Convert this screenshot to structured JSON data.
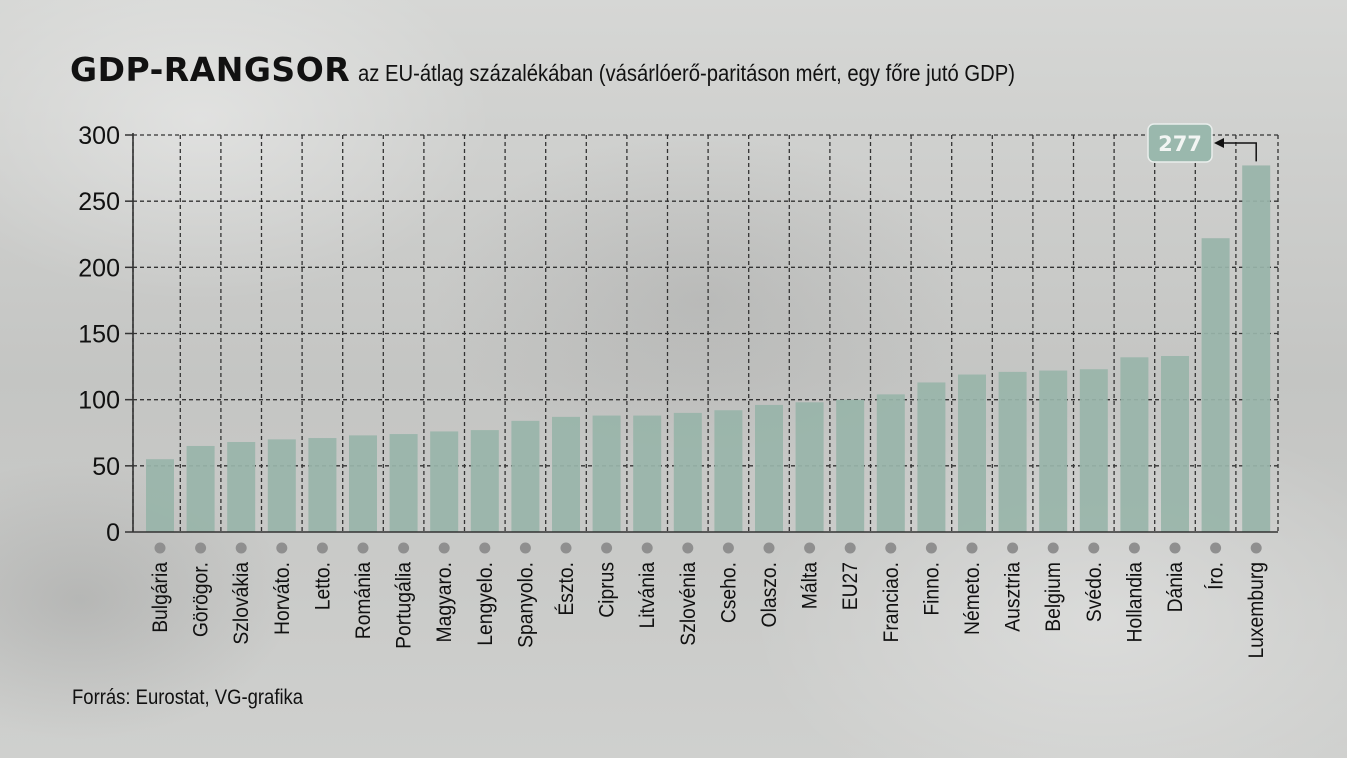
{
  "title": "GDP-RANGSOR",
  "subtitle": "az EU-átlag százalékában (vásárlóerő-paritáson mért, egy főre jutó GDP)",
  "source": "Forrás: Eurostat, VG-grafika",
  "colors": {
    "bar": "#98b4a9",
    "grid": "#333333",
    "dot": "#8f8f8f",
    "callout": "#9ab8ad"
  },
  "chart_data": {
    "type": "bar",
    "title": "GDP-RANGSOR",
    "subtitle": "az EU-átlag százalékában (vásárlóerő-paritáson mért, egy főre jutó GDP)",
    "xlabel": "",
    "ylabel": "",
    "ylim": [
      0,
      300
    ],
    "yticks": [
      0,
      50,
      100,
      150,
      200,
      250,
      300
    ],
    "grid": true,
    "categories": [
      "Bulgária",
      "Görögor.",
      "Szlovákia",
      "Horváto.",
      "Letto.",
      "Románia",
      "Portugália",
      "Magyaro.",
      "Lengyelo.",
      "Spanyolo.",
      "Észto.",
      "Ciprus",
      "Litvánia",
      "Szlovénia",
      "Cseho.",
      "Olaszo.",
      "Málta",
      "EU27",
      "Franciao.",
      "Finno.",
      "Németo.",
      "Ausztria",
      "Belgium",
      "Svédo.",
      "Hollandia",
      "Dánia",
      "Íro.",
      "Luxemburg"
    ],
    "values": [
      55,
      65,
      68,
      70,
      71,
      73,
      74,
      76,
      77,
      84,
      87,
      88,
      88,
      90,
      92,
      96,
      98,
      100,
      104,
      113,
      119,
      121,
      122,
      123,
      132,
      133,
      222,
      277
    ],
    "annotation": {
      "category": "Luxemburg",
      "label": "277"
    }
  }
}
